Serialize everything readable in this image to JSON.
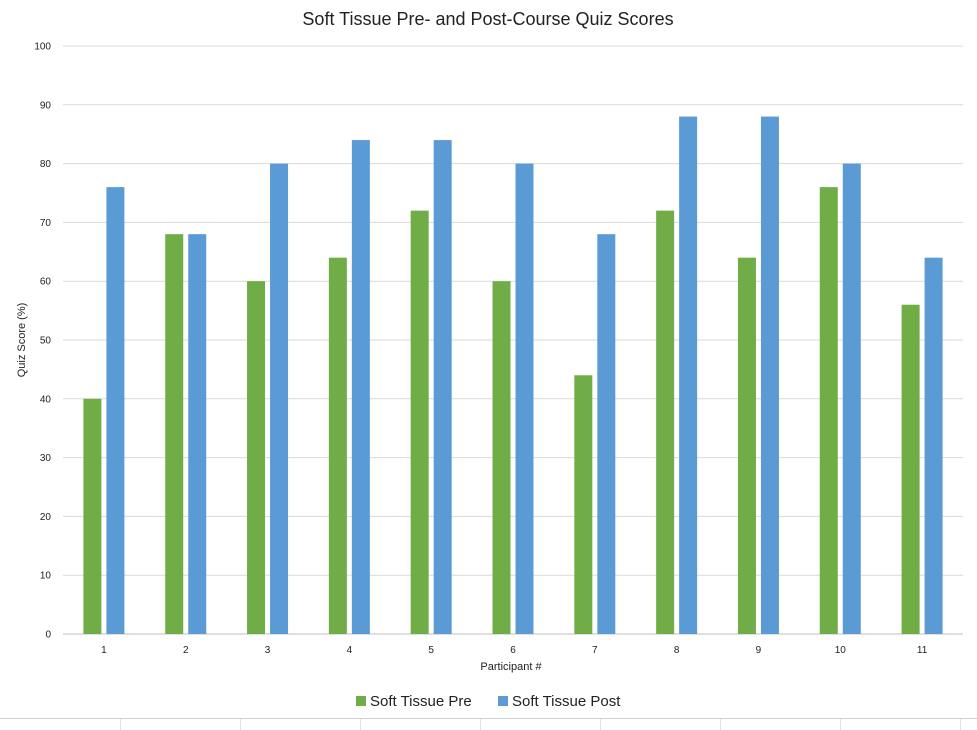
{
  "chart_data": {
    "type": "bar",
    "title": "Soft Tissue Pre- and Post-Course Quiz Scores",
    "xlabel": "Participant #",
    "ylabel": "Quiz Score (%)",
    "ylim": [
      0,
      100
    ],
    "yticks": [
      0,
      10,
      20,
      30,
      40,
      50,
      60,
      70,
      80,
      90,
      100
    ],
    "categories": [
      "1",
      "2",
      "3",
      "4",
      "5",
      "6",
      "7",
      "8",
      "9",
      "10",
      "11"
    ],
    "series": [
      {
        "name": "Soft Tissue Pre",
        "color": "#70ad47",
        "values": [
          40,
          68,
          60,
          64,
          72,
          60,
          44,
          72,
          64,
          76,
          56
        ]
      },
      {
        "name": "Soft Tissue Post",
        "color": "#5b9bd5",
        "values": [
          76,
          68,
          80,
          84,
          84,
          80,
          68,
          88,
          88,
          80,
          64
        ]
      }
    ],
    "grid": true,
    "legend_position": "bottom"
  }
}
